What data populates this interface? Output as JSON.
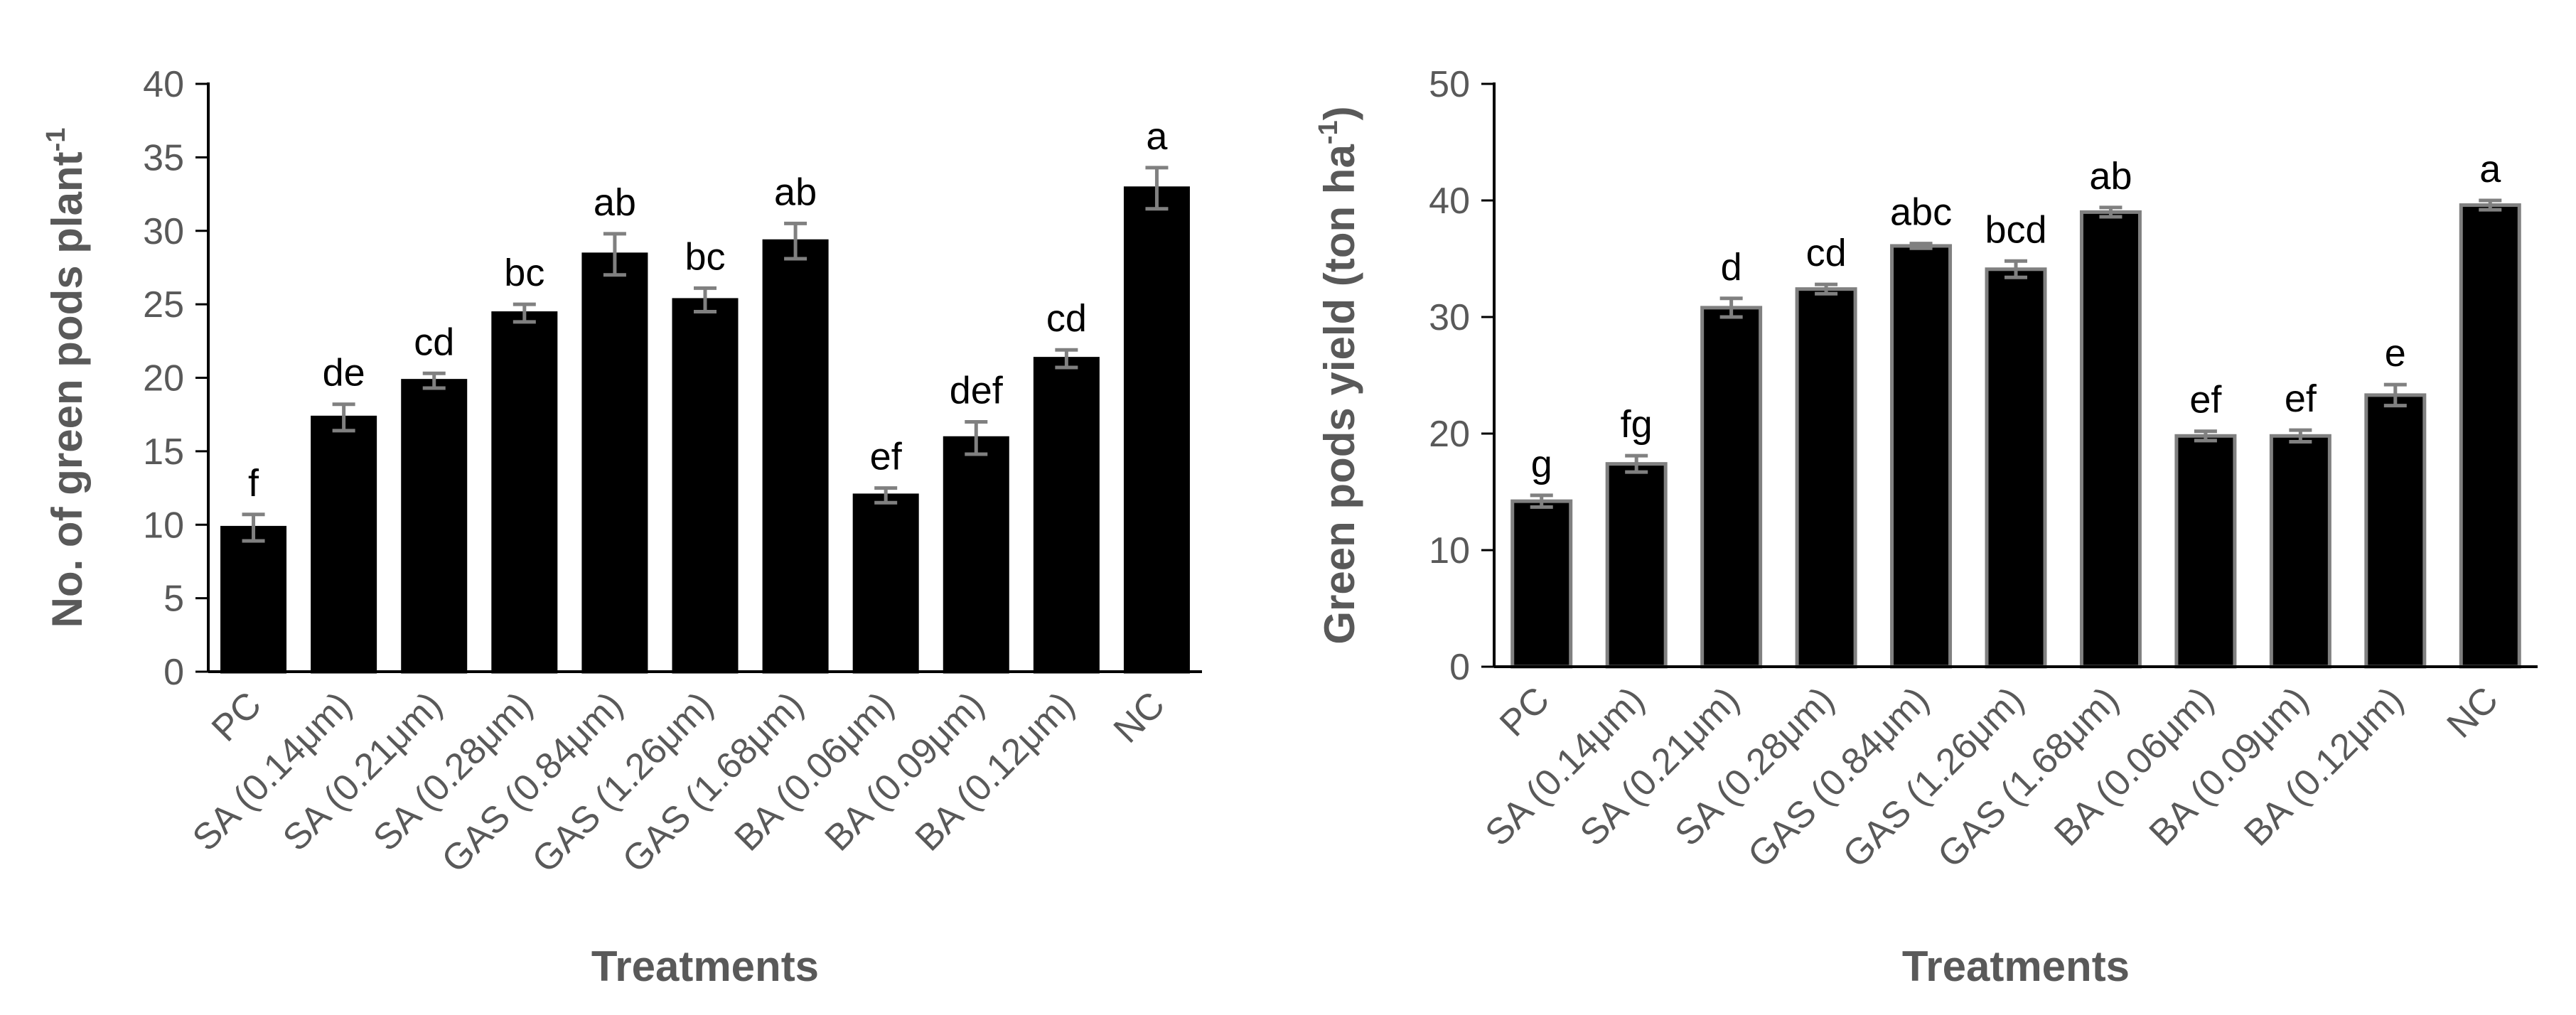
{
  "chart_data": [
    {
      "type": "bar",
      "title": "",
      "categories": [
        "PC",
        "SA (0.14μm)",
        "SA (0.21μm)",
        "SA (0.28μm)",
        "GAS (0.84μm)",
        "GAS (1.26μm)",
        "GAS (1.68μm)",
        "BA (0.06μm)",
        "BA (0.09μm)",
        "BA (0.12μm)",
        "NC"
      ],
      "values": [
        9.8,
        17.3,
        19.8,
        24.4,
        28.4,
        25.3,
        29.3,
        12.0,
        15.9,
        21.3,
        32.9
      ],
      "errors": [
        0.9,
        0.9,
        0.5,
        0.6,
        1.4,
        0.8,
        1.2,
        0.5,
        1.1,
        0.6,
        1.4
      ],
      "significance": [
        "f",
        "de",
        "cd",
        "bc",
        "ab",
        "bc",
        "ab",
        "ef",
        "def",
        "cd",
        "a"
      ],
      "xlabel": "Treatments",
      "ylabel": "No. of green pods plant",
      "ylabel_sup": "-1",
      "ylim": [
        0,
        40
      ],
      "yticks": [
        0,
        5,
        10,
        15,
        20,
        25,
        30,
        35,
        40
      ],
      "bar_color": "#000000",
      "bar_edge_color": "#000000",
      "error_color": "#808080"
    },
    {
      "type": "bar",
      "title": "",
      "categories": [
        "PC",
        "SA (0.14μm)",
        "SA (0.21μm)",
        "SA (0.28μm)",
        "GAS (0.84μm)",
        "GAS (1.26μm)",
        "GAS (1.68μm)",
        "BA (0.06μm)",
        "BA (0.09μm)",
        "BA (0.12μm)",
        "NC"
      ],
      "values": [
        14.2,
        17.4,
        30.8,
        32.4,
        36.1,
        34.1,
        39.0,
        19.8,
        19.8,
        23.3,
        39.6
      ],
      "errors": [
        0.5,
        0.7,
        0.8,
        0.4,
        0.2,
        0.7,
        0.4,
        0.4,
        0.5,
        0.9,
        0.4
      ],
      "significance": [
        "g",
        "fg",
        "d",
        "cd",
        "abc",
        "bcd",
        "ab",
        "ef",
        "ef",
        "e",
        "a"
      ],
      "xlabel": "Treatments",
      "ylabel": "Green pods yield (ton ha",
      "ylabel_sup": "-1",
      "ylabel_end": ")",
      "ylim": [
        0,
        50
      ],
      "yticks": [
        0,
        10,
        20,
        30,
        40,
        50
      ],
      "bar_color": "#000000",
      "bar_edge_color": "#808080",
      "error_color": "#808080"
    }
  ]
}
